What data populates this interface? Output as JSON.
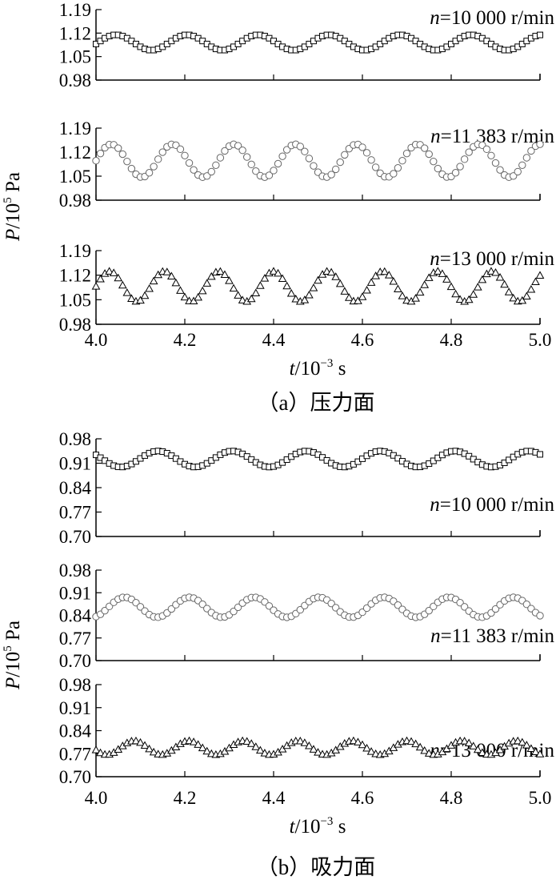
{
  "chart_data": [
    {
      "type": "scatter",
      "group": "a",
      "title": "n=10 000 r/min",
      "title_var": "n",
      "title_rest": "=10 000 r/min",
      "ylim": [
        0.98,
        1.19
      ],
      "yticks": [
        "0.98",
        "1.05",
        "1.12",
        "1.19"
      ],
      "xlim": [
        4.0,
        5.0
      ],
      "marker": "square",
      "series": [
        {
          "mean": 1.092,
          "amplitude": 0.023,
          "period": 0.16,
          "phase": 0.005
        }
      ]
    },
    {
      "type": "scatter",
      "group": "a",
      "title": "n=11 383 r/min",
      "title_var": "n",
      "title_rest": "=11 383 r/min",
      "ylim": [
        0.98,
        1.19
      ],
      "yticks": [
        "0.98",
        "1.05",
        "1.12",
        "1.19"
      ],
      "xlim": [
        4.0,
        5.0
      ],
      "marker": "circle",
      "series": [
        {
          "mean": 1.095,
          "amplitude": 0.048,
          "period": 0.138,
          "phase": 0.0
        }
      ]
    },
    {
      "type": "scatter",
      "group": "a",
      "title": "n=13 000 r/min",
      "title_var": "n",
      "title_rest": "=13 000 r/min",
      "ylim": [
        0.98,
        1.19
      ],
      "yticks": [
        "0.98",
        "1.05",
        "1.12",
        "1.19"
      ],
      "xlim": [
        4.0,
        5.0
      ],
      "marker": "triangle",
      "series": [
        {
          "mean": 1.088,
          "amplitude": 0.043,
          "period": 0.123,
          "phase": 0.0
        }
      ]
    },
    {
      "type": "scatter",
      "group": "b",
      "title": "n=10 000 r/min",
      "title_var": "n",
      "title_rest": "=10 000 r/min",
      "ylim": [
        0.7,
        0.98
      ],
      "yticks": [
        "0.70",
        "0.77",
        "0.84",
        "0.91",
        "0.98"
      ],
      "xlim": [
        4.0,
        5.0
      ],
      "marker": "square",
      "series": [
        {
          "mean": 0.922,
          "amplitude": 0.023,
          "period": 0.167,
          "phase": 0.098
        }
      ]
    },
    {
      "type": "scatter",
      "group": "b",
      "title": "n=11 383 r/min",
      "title_var": "n",
      "title_rest": "=11 383 r/min",
      "ylim": [
        0.7,
        0.98
      ],
      "yticks": [
        "0.70",
        "0.77",
        "0.84",
        "0.91",
        "0.98"
      ],
      "xlim": [
        4.0,
        5.0
      ],
      "marker": "circle",
      "series": [
        {
          "mean": 0.865,
          "amplitude": 0.031,
          "period": 0.146,
          "phase": 0.028
        }
      ]
    },
    {
      "type": "scatter",
      "group": "b",
      "title": "n=13 000 r/min",
      "title_var": "n",
      "title_rest": "=13 000 r/min",
      "ylim": [
        0.7,
        0.98
      ],
      "yticks": [
        "0.70",
        "0.77",
        "0.84",
        "0.91",
        "0.98"
      ],
      "xlim": [
        4.0,
        5.0
      ],
      "marker": "triangle",
      "series": [
        {
          "mean": 0.788,
          "amplitude": 0.021,
          "period": 0.123,
          "phase": 0.055
        }
      ]
    }
  ],
  "axes": {
    "xticks": [
      "4.0",
      "4.2",
      "4.4",
      "4.6",
      "4.8",
      "5.0"
    ],
    "xtick_values": [
      4.0,
      4.2,
      4.4,
      4.6,
      4.8,
      5.0
    ],
    "xlabel_var": "t",
    "xlabel_rest": "/10",
    "xlabel_sup": "−3",
    "xlabel_unit": " s",
    "ylabel_var": "P",
    "ylabel_rest": "/10",
    "ylabel_sup": "5",
    "ylabel_unit": " Pa"
  },
  "captions": {
    "a": "（a）压力面",
    "b": "（b）吸力面"
  }
}
